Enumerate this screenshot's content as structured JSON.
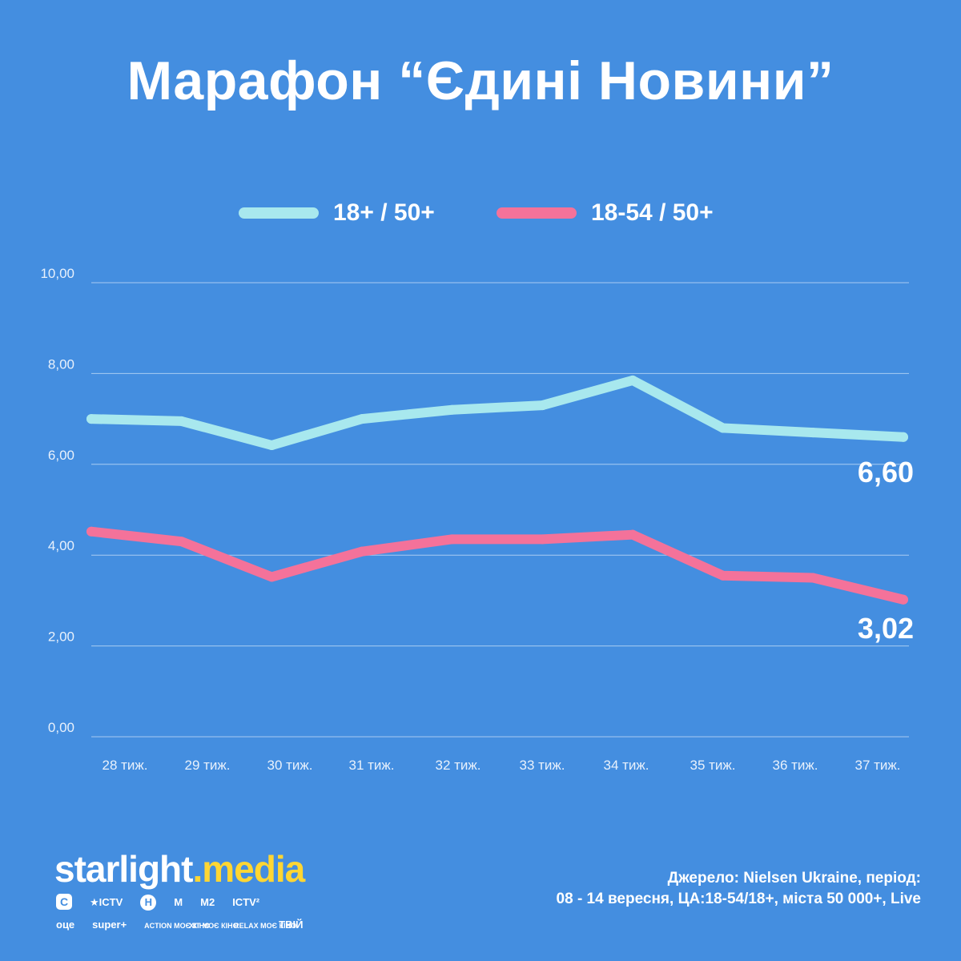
{
  "title": "Марафон “Єдині Новини”",
  "chart_data": {
    "type": "line",
    "categories": [
      "28 тиж.",
      "29 тиж.",
      "30 тиж.",
      "31 тиж.",
      "32 тиж.",
      "33 тиж.",
      "34 тиж.",
      "35 тиж.",
      "36 тиж.",
      "37 тиж."
    ],
    "series": [
      {
        "name": "18+ / 50+",
        "color": "#a8e8ee",
        "values": [
          7.0,
          6.95,
          6.42,
          7.0,
          7.2,
          7.3,
          7.85,
          6.8,
          6.7,
          6.6
        ],
        "end_label": "6,60"
      },
      {
        "name": "18-54 / 50+",
        "color": "#f4729a",
        "values": [
          4.52,
          4.3,
          3.52,
          4.08,
          4.35,
          4.35,
          4.45,
          3.55,
          3.5,
          3.02
        ],
        "end_label": "3,02"
      }
    ],
    "y_ticks": [
      "0,00",
      "2,00",
      "4,00",
      "6,00",
      "8,00",
      "10,00"
    ],
    "ylim": [
      0,
      10
    ],
    "grid": true,
    "legend_position": "top-center"
  },
  "footer": {
    "brand_part1": "starlight",
    "brand_dot": ".",
    "brand_part2": "media",
    "channels_row1": [
      {
        "icon": "c-logo-icon",
        "text": "С",
        "style": "sq"
      },
      {
        "icon": "star-icon",
        "text": "★ICTV"
      },
      {
        "icon": "n-logo-icon",
        "text": "Н",
        "style": "badge"
      },
      {
        "icon": "m-logo-icon",
        "text": "М"
      },
      {
        "icon": "m2-logo-icon",
        "text": "М2"
      },
      {
        "icon": "ictv2-logo-icon",
        "text": "ICTV²"
      }
    ],
    "channels_row2": [
      {
        "icon": "oce-logo-icon",
        "text": "оце"
      },
      {
        "icon": "superplus-logo-icon",
        "text": "super+"
      },
      {
        "icon": "action-kino-logo-icon",
        "text": "ACTION МОЄ КІНО"
      },
      {
        "icon": "hit-kino-logo-icon",
        "text": "ХІТ МОЄ КІНО"
      },
      {
        "icon": "relax-kino-logo-icon",
        "text": "RELAX МОЄ КІНО"
      },
      {
        "icon": "tviy-logo-icon",
        "text": "ТВІЙ"
      }
    ],
    "source_line1": "Джерело: Nielsen Ukraine, період:",
    "source_line2": "08 - 14 вересня, ЦА:18-54/18+, міста 50 000+, Live"
  }
}
